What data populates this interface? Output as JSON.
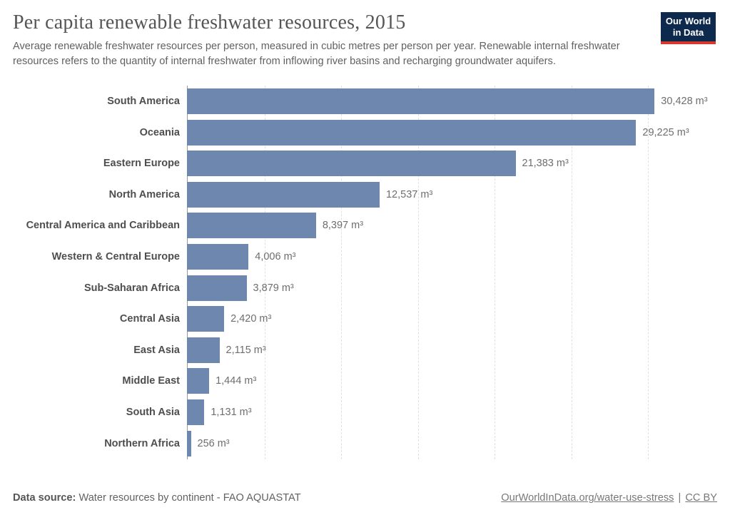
{
  "header": {
    "title": "Per capita renewable freshwater resources, 2015",
    "subtitle": "Average renewable freshwater resources per person, measured in cubic metres per person per year. Renewable internal freshwater resources refers to the quantity of internal freshwater from inflowing river basins and recharging groundwater aquifers.",
    "logo": {
      "line1": "Our World",
      "line2": "in Data",
      "bg_color": "#0d2a4e",
      "accent_color": "#d5382d"
    }
  },
  "chart_data": {
    "type": "bar",
    "orientation": "horizontal",
    "title": "Per capita renewable freshwater resources, 2015",
    "xlabel": "",
    "ylabel": "",
    "categories": [
      "South America",
      "Oceania",
      "Eastern Europe",
      "North America",
      "Central America and Caribbean",
      "Western & Central Europe",
      "Sub-Saharan Africa",
      "Central Asia",
      "East Asia",
      "Middle East",
      "South Asia",
      "Northern Africa"
    ],
    "values": [
      30428,
      29225,
      21383,
      12537,
      8397,
      4006,
      3879,
      2420,
      2115,
      1444,
      1131,
      256
    ],
    "value_labels": [
      "30,428 m³",
      "29,225 m³",
      "21,383 m³",
      "12,537 m³",
      "8,397 m³",
      "4,006 m³",
      "3,879 m³",
      "2,420 m³",
      "2,115 m³",
      "1,444 m³",
      "1,131 m³",
      "256 m³"
    ],
    "unit": "m³",
    "xlim": [
      0,
      34500
    ],
    "gridlines": [
      5000,
      10000,
      15000,
      20000,
      25000,
      30000
    ],
    "grid_style": "dashed",
    "legend": "none",
    "bar_color": "#6e87ae"
  },
  "footer": {
    "source_label": "Data source:",
    "source_text": " Water resources by continent - FAO AQUASTAT",
    "url": "OurWorldInData.org/water-use-stress",
    "separator": " | ",
    "license": "CC BY"
  }
}
